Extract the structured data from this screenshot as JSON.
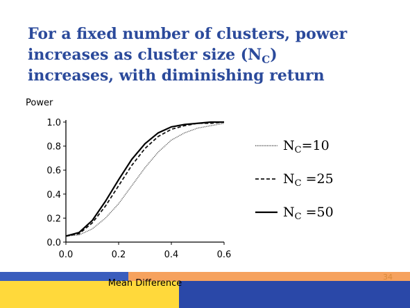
{
  "page_number": "34",
  "chart_data": {
    "type": "line",
    "title": [
      "For a fixed number of clusters, power",
      "increases as cluster size (N",
      "C",
      ")",
      "increases, with diminishing return"
    ],
    "ylabel": "Power",
    "xlabel": "Mean Difference",
    "x": [
      0,
      0.05,
      0.1,
      0.15,
      0.2,
      0.25,
      0.3,
      0.35,
      0.4,
      0.45,
      0.5,
      0.55,
      0.6
    ],
    "xlim": [
      0,
      0.6
    ],
    "xticks": [
      {
        "value": 0,
        "label": "0.0"
      },
      0.2,
      0.4,
      0.6
    ],
    "ylim": [
      0,
      1
    ],
    "yticks": [
      {
        "value": 0,
        "label": "0.0"
      },
      0.2,
      0.4,
      0.6,
      0.8,
      {
        "value": 1,
        "label": "1.0"
      }
    ],
    "series": [
      {
        "name": {
          "main": "N",
          "sub": "C",
          "rest": "=10"
        },
        "color": "#555555",
        "style": "dotted",
        "values": [
          0.05,
          0.06,
          0.11,
          0.2,
          0.32,
          0.47,
          0.62,
          0.75,
          0.85,
          0.91,
          0.95,
          0.97,
          0.99
        ]
      },
      {
        "name": {
          "main": "N",
          "sub": "C",
          "rest": " =25"
        },
        "color": "#111111",
        "style": "dashed",
        "values": [
          0.05,
          0.07,
          0.16,
          0.3,
          0.47,
          0.64,
          0.78,
          0.88,
          0.94,
          0.97,
          0.99,
          0.99,
          1.0
        ]
      },
      {
        "name": {
          "main": "N",
          "sub": "C",
          "rest": " =50"
        },
        "color": "#000000",
        "style": "solid",
        "values": [
          0.05,
          0.08,
          0.18,
          0.34,
          0.52,
          0.69,
          0.82,
          0.91,
          0.96,
          0.98,
          0.99,
          1.0,
          1.0
        ]
      }
    ]
  }
}
